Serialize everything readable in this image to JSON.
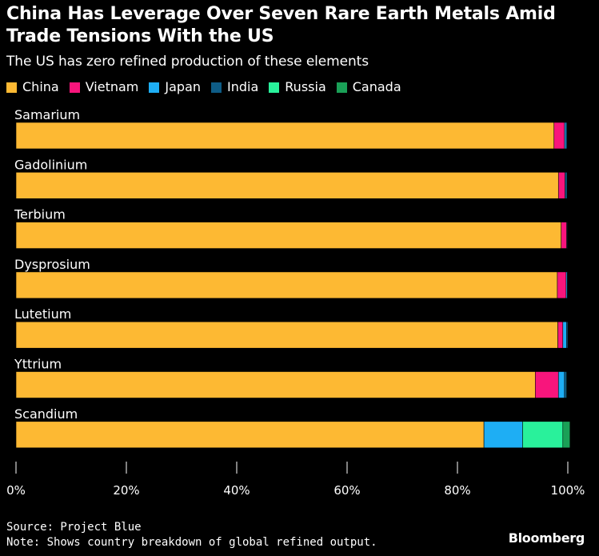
{
  "title": "China Has Leverage Over Seven Rare Earth Metals Amid Trade Tensions With the US",
  "subtitle": "The US has zero refined production of these elements",
  "source": "Source: Project Blue",
  "note": "Note: Shows country breakdown of global refined output.",
  "brand": "Bloomberg",
  "chart_data": {
    "type": "bar",
    "orientation": "horizontal",
    "stacked": true,
    "categories": [
      "Samarium",
      "Gadolinium",
      "Terbium",
      "Dysprosium",
      "Lutetium",
      "Yttrium",
      "Scandium"
    ],
    "series": [
      {
        "name": "China",
        "color": "#FDB933",
        "values": [
          97.5,
          98.3,
          98.8,
          98.1,
          98.2,
          94.1,
          84.8
        ]
      },
      {
        "name": "Vietnam",
        "color": "#F8157C",
        "values": [
          1.9,
          1.2,
          1.0,
          1.6,
          0.9,
          4.2,
          0
        ]
      },
      {
        "name": "Japan",
        "color": "#1EAEF4",
        "values": [
          0.3,
          0.2,
          0.1,
          0.2,
          0.7,
          1.1,
          7.0
        ]
      },
      {
        "name": "India",
        "color": "#0E5C86",
        "values": [
          0.2,
          0.2,
          0.1,
          0.1,
          0.2,
          0.4,
          0
        ]
      },
      {
        "name": "Russia",
        "color": "#29F19B",
        "values": [
          0,
          0,
          0,
          0,
          0,
          0.1,
          7.3
        ]
      },
      {
        "name": "Canada",
        "color": "#1AA057",
        "values": [
          0,
          0,
          0,
          0,
          0,
          0,
          1.3
        ]
      }
    ],
    "x_ticks": [
      "0%",
      "20%",
      "40%",
      "60%",
      "80%",
      "100%"
    ],
    "xlim": [
      0,
      100
    ],
    "legend_position": "top-left",
    "grid": false
  }
}
